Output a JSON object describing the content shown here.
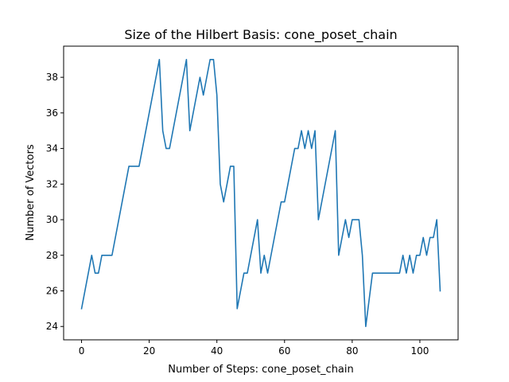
{
  "chart_data": {
    "type": "line",
    "title": "Size of the Hilbert Basis: cone_poset_chain",
    "xlabel": "Number of Steps: cone_poset_chain",
    "ylabel": "Number of Vectors",
    "xlim": [
      -5.3,
      111.3
    ],
    "ylim": [
      23.25,
      39.75
    ],
    "xticks": [
      0,
      20,
      40,
      60,
      80,
      100
    ],
    "yticks": [
      24,
      26,
      28,
      30,
      32,
      34,
      36,
      38
    ],
    "grid": false,
    "legend": "none",
    "series": [
      {
        "color": "#1f77b4",
        "x": [
          0,
          3,
          4,
          5,
          6,
          9,
          14,
          17,
          23,
          24,
          25,
          26,
          31,
          32,
          35,
          36,
          38,
          39,
          40,
          41,
          42,
          44,
          45,
          46,
          48,
          49,
          52,
          53,
          54,
          55,
          59,
          60,
          63,
          64,
          65,
          66,
          67,
          68,
          69,
          70,
          75,
          76,
          78,
          79,
          80,
          82,
          83,
          84,
          86,
          94,
          95,
          96,
          97,
          98,
          99,
          100,
          101,
          102,
          103,
          104,
          105,
          106
        ],
        "y": [
          25,
          28,
          27,
          27,
          28,
          28,
          33,
          33,
          39,
          35,
          34,
          34,
          39,
          35,
          38,
          37,
          39,
          39,
          37,
          32,
          31,
          33,
          33,
          25,
          27,
          27,
          30,
          27,
          28,
          27,
          31,
          31,
          34,
          34,
          35,
          34,
          35,
          34,
          35,
          30,
          35,
          28,
          30,
          29,
          30,
          30,
          28,
          24,
          27,
          27,
          28,
          27,
          28,
          27,
          28,
          28,
          29,
          28,
          29,
          29,
          30,
          26
        ]
      }
    ]
  }
}
